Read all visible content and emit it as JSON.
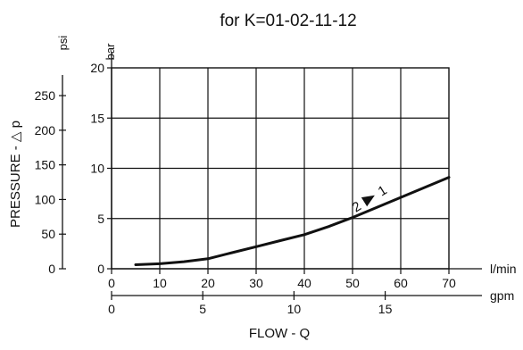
{
  "chart_data": {
    "type": "line",
    "title": "for K=01-02-11-12",
    "x_primary": {
      "unit": "l/min",
      "range": [
        0,
        70
      ],
      "ticks": [
        0,
        10,
        20,
        30,
        40,
        50,
        60,
        70
      ]
    },
    "x_secondary": {
      "unit": "gpm",
      "ticks": [
        0,
        5,
        10,
        15
      ]
    },
    "xlabel": "FLOW - Q",
    "y_primary": {
      "unit": "bar",
      "range": [
        0,
        20
      ],
      "ticks": [
        0,
        5,
        10,
        15,
        20
      ]
    },
    "y_secondary": {
      "unit": "psi",
      "ticks": [
        0,
        50,
        100,
        150,
        200,
        250
      ]
    },
    "ylabel": "PRESSURE - △ p",
    "grid": true,
    "annotation": {
      "from": "2",
      "to": "1"
    },
    "series": [
      {
        "x": [
          5,
          10,
          15,
          20,
          25,
          30,
          35,
          40,
          45,
          50,
          55,
          60,
          65,
          70
        ],
        "y": [
          0.4,
          0.5,
          0.7,
          1.0,
          1.6,
          2.2,
          2.8,
          3.4,
          4.2,
          5.1,
          6.1,
          7.1,
          8.1,
          9.1
        ]
      }
    ]
  }
}
